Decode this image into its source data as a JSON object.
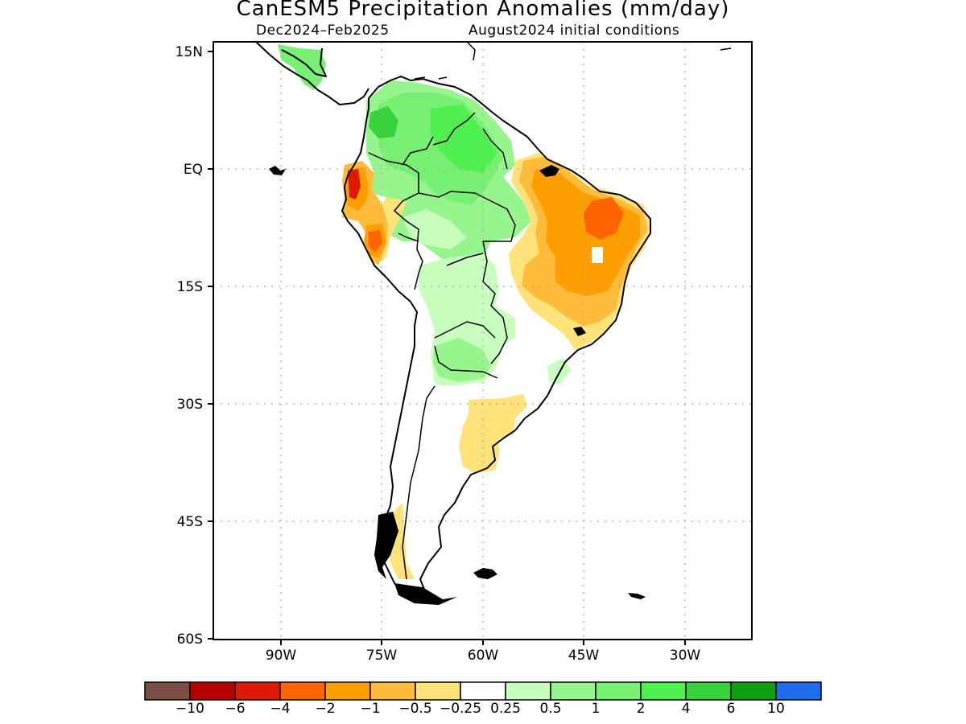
{
  "title": "CanESM5 Precipitation Anomalies (mm/day)",
  "subtitle_period": "Dec2024–Feb2025",
  "subtitle_init": "August2024 initial conditions",
  "axes": {
    "lat_labels": [
      "15N",
      "EQ",
      "15S",
      "30S",
      "45S",
      "60S"
    ],
    "lon_labels": [
      "90W",
      "75W",
      "60W",
      "45W",
      "30W"
    ],
    "lat_range": [
      -60,
      15
    ],
    "lon_range": [
      -100,
      -20
    ]
  },
  "colorbar": {
    "colors": [
      "#7b4f46",
      "#b70000",
      "#dd1a00",
      "#ff6400",
      "#ff9e00",
      "#ffbb3a",
      "#ffe37a",
      "#ffffff",
      "#c8ffbe",
      "#96f58c",
      "#78f073",
      "#50f050",
      "#37d23c",
      "#0fa00f",
      "#1e6eeb"
    ],
    "labels": [
      "−10",
      "−6",
      "−4",
      "−2",
      "−1",
      "−0.5",
      "−0.25",
      "0.25",
      "0.5",
      "1",
      "2",
      "4",
      "6",
      "10"
    ]
  },
  "legend_colors": {
    "dry_strong": "#ff6400",
    "dry": "#ff9e00",
    "dry_light": "#ffbb3a",
    "dry_faint": "#ffe37a",
    "wet_faint": "#c8ffbe",
    "wet_light": "#96f58c",
    "wet": "#78f073",
    "wet_strong": "#50f050",
    "wet_stronger": "#37d23c",
    "very_dry": "#dd1a00"
  }
}
